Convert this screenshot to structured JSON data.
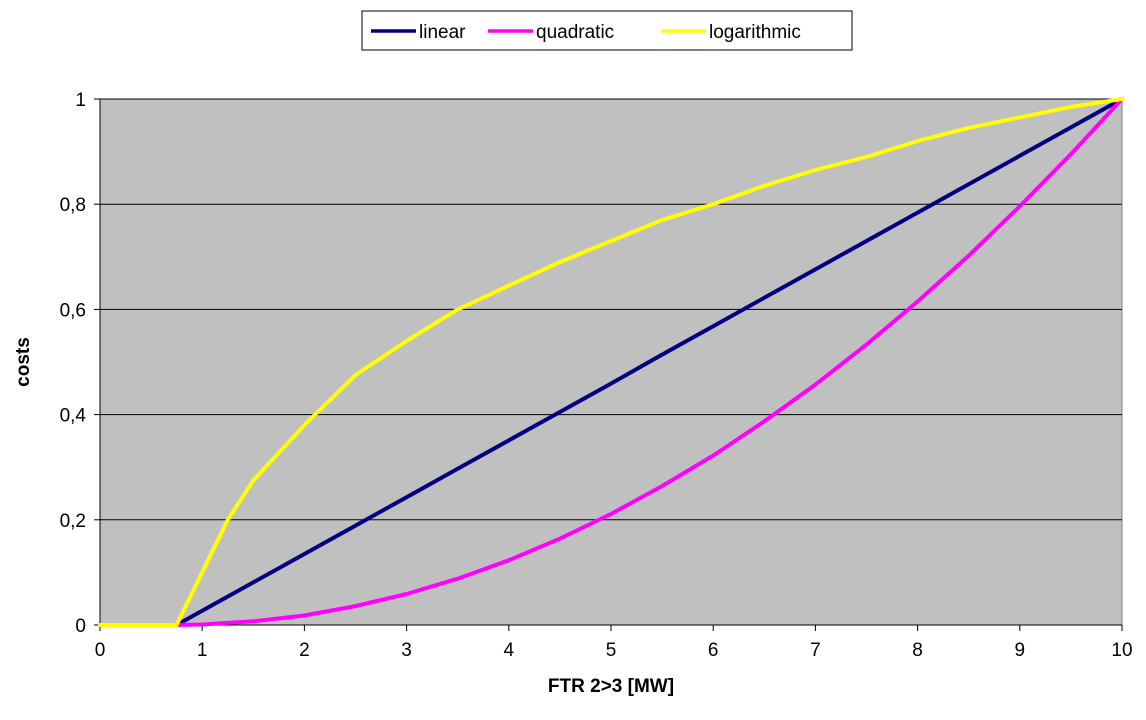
{
  "chart_data": {
    "type": "line",
    "xlabel": "FTR 2>3 [MW]",
    "ylabel": "costs",
    "xlim": [
      0,
      10
    ],
    "ylim": [
      0,
      1
    ],
    "x_ticks": [
      "0",
      "1",
      "2",
      "3",
      "4",
      "5",
      "6",
      "7",
      "8",
      "9",
      "10"
    ],
    "y_ticks": [
      "0",
      "0,2",
      "0,4",
      "0,6",
      "0,8",
      "1"
    ],
    "grid": "horizontal",
    "legend_position": "top",
    "plot_background": "#c0c0c0",
    "series": [
      {
        "name": "linear",
        "color": "#000080",
        "x": [
          0,
          0.5,
          0.75,
          1,
          1.5,
          2,
          2.5,
          3,
          3.5,
          4,
          4.5,
          5,
          5.5,
          6,
          6.5,
          7,
          7.5,
          8,
          8.5,
          9,
          9.5,
          10
        ],
        "y": [
          0,
          0,
          0,
          0.027,
          0.081,
          0.135,
          0.189,
          0.243,
          0.297,
          0.351,
          0.405,
          0.459,
          0.514,
          0.568,
          0.622,
          0.676,
          0.73,
          0.784,
          0.838,
          0.892,
          0.946,
          1
        ]
      },
      {
        "name": "quadratic",
        "color": "#ff00ff",
        "x": [
          0,
          0.5,
          0.75,
          1,
          1.5,
          2,
          2.5,
          3,
          3.5,
          4,
          4.5,
          5,
          5.5,
          6,
          6.5,
          7,
          7.5,
          8,
          8.5,
          9,
          9.5,
          10
        ],
        "y": [
          0,
          0,
          0,
          0.001,
          0.007,
          0.018,
          0.036,
          0.059,
          0.088,
          0.123,
          0.164,
          0.211,
          0.264,
          0.322,
          0.387,
          0.457,
          0.533,
          0.615,
          0.702,
          0.796,
          0.895,
          1
        ]
      },
      {
        "name": "logarithmic",
        "color": "#ffff00",
        "x": [
          0,
          0.5,
          0.75,
          1,
          1.25,
          1.5,
          2,
          2.5,
          3,
          3.5,
          4,
          4.5,
          5,
          5.5,
          6,
          6.5,
          7,
          7.5,
          8,
          8.5,
          9,
          9.5,
          10
        ],
        "y": [
          0,
          0,
          0,
          0.1,
          0.2,
          0.275,
          0.38,
          0.475,
          0.54,
          0.6,
          0.645,
          0.69,
          0.73,
          0.77,
          0.8,
          0.835,
          0.865,
          0.89,
          0.92,
          0.945,
          0.965,
          0.985,
          1
        ]
      }
    ]
  }
}
